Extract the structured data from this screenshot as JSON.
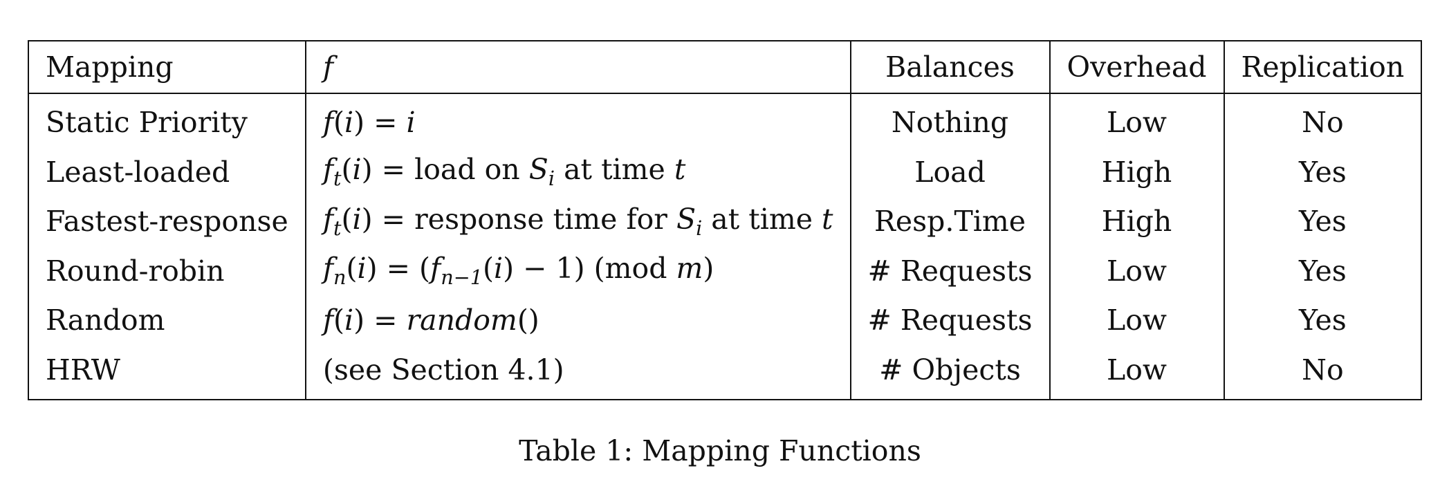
{
  "table": {
    "headers": [
      "Mapping",
      "f",
      "Balances",
      "Overhead",
      "Replication"
    ],
    "rows": [
      [
        "Static Priority",
        "f(i) = i",
        "Nothing",
        "Low",
        "No"
      ],
      [
        "Least-loaded",
        "f_t(i) = load on S_i at time t",
        "Load",
        "High",
        "Yes"
      ],
      [
        "Fastest-response",
        "f_t(i) = response time for S_i at time t",
        "Resp.Time",
        "High",
        "Yes"
      ],
      [
        "Round-robin",
        "f_n(i) = (f_{n−1}(i) − 1) (mod m)",
        "# Requests",
        "Low",
        "Yes"
      ],
      [
        "Random",
        "f(i) = random()",
        "# Requests",
        "Low",
        "Yes"
      ],
      [
        "HRW",
        "(see Section 4.1)",
        "# Objects",
        "Low",
        "No"
      ]
    ]
  },
  "caption": "Table 1: Mapping Functions"
}
